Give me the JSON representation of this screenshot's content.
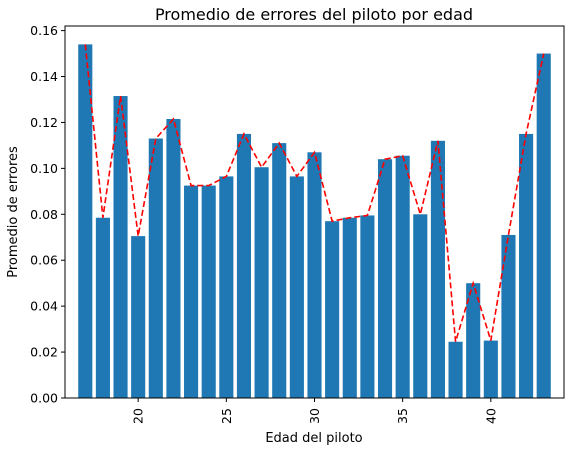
{
  "chart_data": {
    "type": "bar",
    "title": "Promedio de errores del piloto por edad",
    "xlabel": "Edad del piloto",
    "ylabel": "Promedio de errores",
    "x": [
      17,
      18,
      19,
      20,
      21,
      22,
      23,
      24,
      25,
      26,
      27,
      28,
      29,
      30,
      31,
      32,
      33,
      34,
      35,
      36,
      37,
      38,
      39,
      40,
      41,
      42,
      43
    ],
    "values": [
      0.154,
      0.0785,
      0.1315,
      0.0705,
      0.113,
      0.1215,
      0.0925,
      0.0925,
      0.0965,
      0.115,
      0.1005,
      0.111,
      0.0965,
      0.107,
      0.077,
      0.0785,
      0.0795,
      0.104,
      0.1055,
      0.08,
      0.112,
      0.0245,
      0.05,
      0.025,
      0.071,
      0.115,
      0.15
    ],
    "xlim": [
      15.85,
      44.15
    ],
    "ylim": [
      0,
      0.162
    ],
    "xticks": [
      20,
      25,
      30,
      35,
      40
    ],
    "xtick_labels": [
      "20",
      "25",
      "30",
      "35",
      "40"
    ],
    "yticks": [
      0,
      0.02,
      0.04,
      0.06,
      0.08,
      0.1,
      0.12,
      0.14,
      0.16
    ],
    "ytick_labels": [
      "0.00",
      "0.02",
      "0.04",
      "0.06",
      "0.08",
      "0.10",
      "0.12",
      "0.14",
      "0.16"
    ],
    "bar_color": "#1f77b4",
    "overlay_line": {
      "style": "dashed",
      "color": "#ff0000"
    },
    "grid": false
  }
}
